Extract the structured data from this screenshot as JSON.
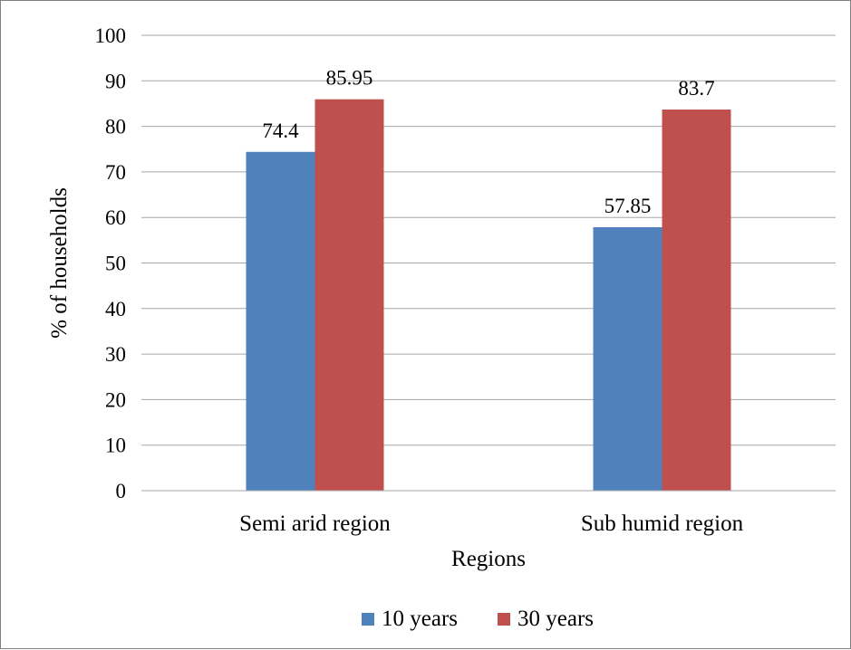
{
  "chart_data": {
    "type": "bar",
    "title": "",
    "xlabel": "Regions",
    "ylabel": "% of households",
    "ylim": [
      0,
      100
    ],
    "yticks": [
      0,
      10,
      20,
      30,
      40,
      50,
      60,
      70,
      80,
      90,
      100
    ],
    "categories": [
      "Semi arid region",
      "Sub humid region"
    ],
    "series": [
      {
        "name": "10 years",
        "color": "#4f81bd",
        "values": [
          74.4,
          57.85
        ],
        "labels": [
          "74.4",
          "57.85"
        ]
      },
      {
        "name": "30 years",
        "color": "#c0504d",
        "values": [
          85.95,
          83.7
        ],
        "labels": [
          "85.95",
          "83.7"
        ]
      }
    ],
    "grid": true,
    "legend_position": "bottom"
  }
}
